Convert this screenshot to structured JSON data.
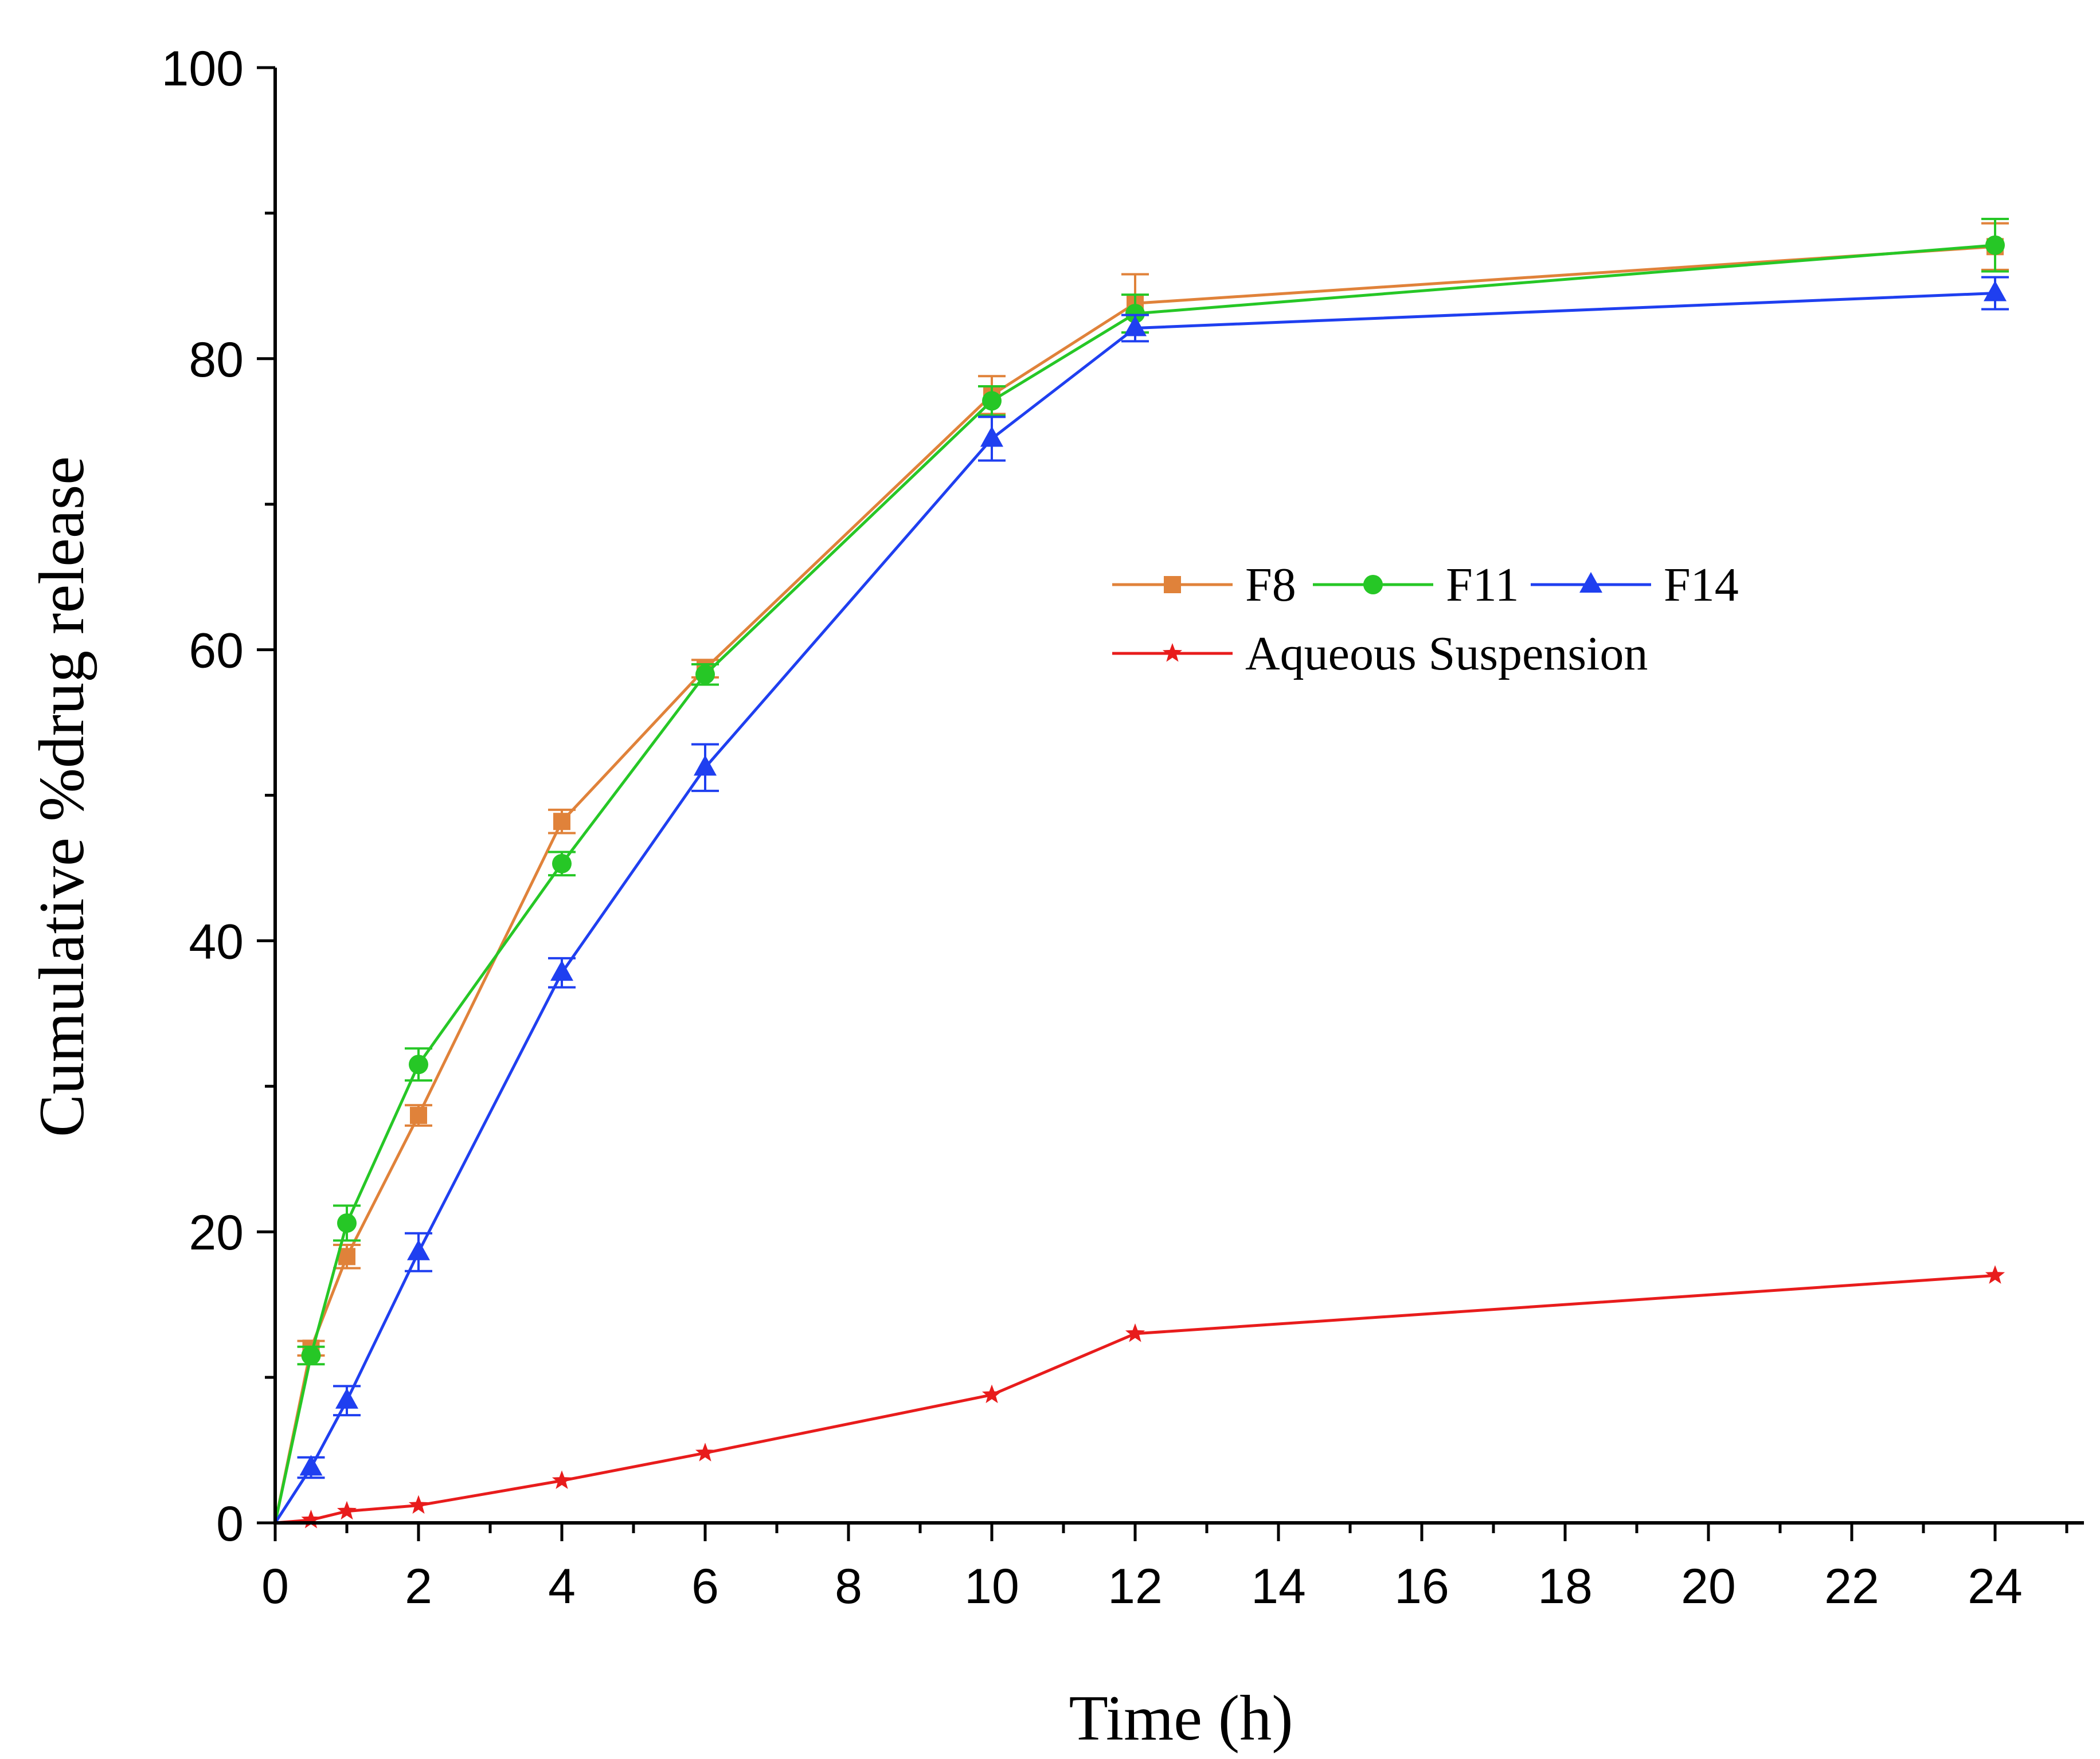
{
  "chart_data": {
    "type": "line",
    "title": "",
    "xlabel": "Time (h)",
    "ylabel": "Cumulative %drug release",
    "xlim": [
      0,
      25
    ],
    "ylim": [
      0,
      100
    ],
    "x_major_ticks": [
      0,
      2,
      4,
      6,
      8,
      10,
      12,
      14,
      16,
      18,
      20,
      22,
      24
    ],
    "x_tick_labels": [
      "0",
      "2",
      "4",
      "6",
      "8",
      "10",
      "12",
      "14",
      "16",
      "18",
      "20",
      "22",
      "24"
    ],
    "y_major_ticks": [
      0,
      20,
      40,
      60,
      80,
      100
    ],
    "y_tick_labels": [
      "0",
      "20",
      "40",
      "60",
      "80",
      "100"
    ],
    "grid": false,
    "legend_position": "center-right",
    "series": [
      {
        "name": "F8",
        "color": "#e0823a",
        "marker": "square",
        "x": [
          0,
          0.5,
          1,
          2,
          4,
          6,
          10,
          12,
          24
        ],
        "y": [
          0,
          12.0,
          18.3,
          28.0,
          48.2,
          58.7,
          77.5,
          83.8,
          87.7
        ],
        "err": [
          0,
          0.5,
          0.8,
          0.7,
          0.8,
          0.6,
          1.3,
          2.0,
          1.6
        ]
      },
      {
        "name": "F11",
        "color": "#26c726",
        "marker": "circle",
        "x": [
          0,
          0.5,
          1,
          2,
          4,
          6,
          10,
          12,
          24
        ],
        "y": [
          0,
          11.5,
          20.6,
          31.5,
          45.3,
          58.3,
          77.1,
          83.1,
          87.8
        ],
        "err": [
          0,
          0.6,
          1.2,
          1.1,
          0.8,
          0.7,
          1.0,
          1.3,
          1.8
        ]
      },
      {
        "name": "F14",
        "color": "#1f3ff0",
        "marker": "triangle",
        "x": [
          0,
          0.5,
          1,
          2,
          4,
          6,
          10,
          12,
          24
        ],
        "y": [
          0,
          3.8,
          8.4,
          18.6,
          37.8,
          51.9,
          74.5,
          82.1,
          84.5
        ],
        "err": [
          0,
          0.7,
          1.0,
          1.3,
          1.0,
          1.6,
          1.5,
          0.9,
          1.1
        ]
      },
      {
        "name": "Aqueous Suspension",
        "color": "#e81c1c",
        "marker": "star",
        "x": [
          0,
          0.5,
          1,
          2,
          4,
          6,
          10,
          12,
          24
        ],
        "y": [
          0,
          0.2,
          0.8,
          1.2,
          2.9,
          4.8,
          8.8,
          13.0,
          17.0
        ],
        "err": [
          0,
          0,
          0,
          0,
          0,
          0,
          0,
          0,
          0
        ]
      }
    ]
  }
}
